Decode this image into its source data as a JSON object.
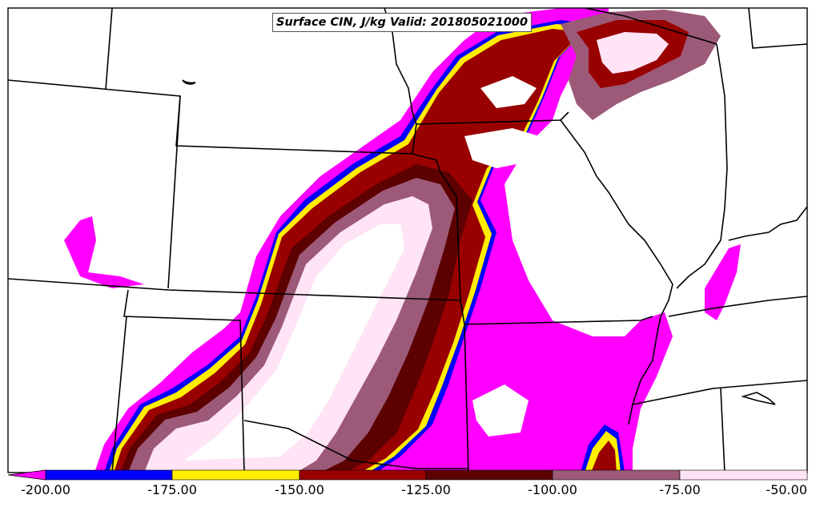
{
  "title": "Surface CIN, J/kg Valid: 201805021000",
  "legend": {
    "ticks": [
      "-200.00",
      "-175.00",
      "-150.00",
      "-125.00",
      "-100.00",
      "-75.00",
      "-50.00"
    ],
    "bins": [
      {
        "range": "< -200",
        "color": "#ff00ff"
      },
      {
        "range": "-200 to -175",
        "color": "#0000ff"
      },
      {
        "range": "-175 to -150",
        "color": "#ffee00"
      },
      {
        "range": "-150 to -125",
        "color": "#990000"
      },
      {
        "range": "-125 to -100",
        "color": "#5c0000"
      },
      {
        "range": "-100 to -75",
        "color": "#9c5a78"
      },
      {
        "range": "-75 to -50",
        "color": "#ffe4f6"
      }
    ]
  }
}
